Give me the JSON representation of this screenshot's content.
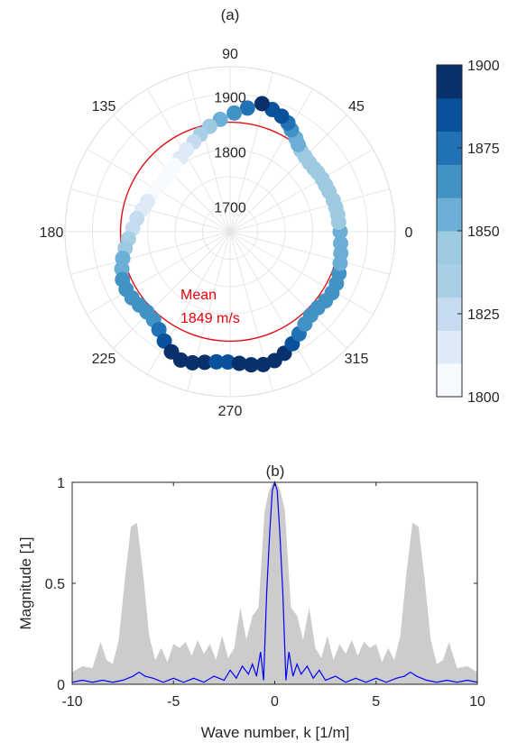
{
  "chart_data": [
    {
      "type": "scatter",
      "subtype": "polar",
      "title": "(a)",
      "theta_ticks": [
        "0",
        "45",
        "90",
        "135",
        "180",
        "225",
        "270",
        "315"
      ],
      "r_ticks": [
        "1700",
        "1800",
        "1900"
      ],
      "rlim": [
        1650,
        1950
      ],
      "annotation": {
        "line1": "Mean",
        "line2": "1849 m/s",
        "value": 1849,
        "color": "#e8000b"
      },
      "colorbar": {
        "ticks": [
          "1800",
          "1825",
          "1850",
          "1875",
          "1900"
        ],
        "range": [
          1800,
          1900
        ],
        "levels": 10
      },
      "points": [
        {
          "theta": 0,
          "r": 1850
        },
        {
          "theta": 5,
          "r": 1848
        },
        {
          "theta": 9,
          "r": 1848
        },
        {
          "theta": 13,
          "r": 1847
        },
        {
          "theta": 17,
          "r": 1846
        },
        {
          "theta": 22,
          "r": 1844
        },
        {
          "theta": 26,
          "r": 1843
        },
        {
          "theta": 30,
          "r": 1843
        },
        {
          "theta": 34,
          "r": 1842
        },
        {
          "theta": 37,
          "r": 1841
        },
        {
          "theta": 41,
          "r": 1841
        },
        {
          "theta": 45,
          "r": 1843
        },
        {
          "theta": 49,
          "r": 1846
        },
        {
          "theta": 52,
          "r": 1851
        },
        {
          "theta": 55,
          "r": 1858
        },
        {
          "theta": 59,
          "r": 1866
        },
        {
          "theta": 62,
          "r": 1874
        },
        {
          "theta": 66,
          "r": 1880
        },
        {
          "theta": 71,
          "r": 1885
        },
        {
          "theta": 76,
          "r": 1890
        },
        {
          "theta": 82,
          "r": 1877
        },
        {
          "theta": 88,
          "r": 1866
        },
        {
          "theta": 95,
          "r": 1855
        },
        {
          "theta": 101,
          "r": 1845
        },
        {
          "theta": 107,
          "r": 1835
        },
        {
          "theta": 112,
          "r": 1826
        },
        {
          "theta": 118,
          "r": 1819
        },
        {
          "theta": 124,
          "r": 1812
        },
        {
          "theta": 130,
          "r": 1807
        },
        {
          "theta": 136,
          "r": 1804
        },
        {
          "theta": 142,
          "r": 1802
        },
        {
          "theta": 148,
          "r": 1803
        },
        {
          "theta": 154,
          "r": 1806
        },
        {
          "theta": 160,
          "r": 1810
        },
        {
          "theta": 166,
          "r": 1815
        },
        {
          "theta": 172,
          "r": 1821
        },
        {
          "theta": 178,
          "r": 1827
        },
        {
          "theta": 184,
          "r": 1835
        },
        {
          "theta": 189,
          "r": 1843
        },
        {
          "theta": 194,
          "r": 1851
        },
        {
          "theta": 199,
          "r": 1858
        },
        {
          "theta": 204,
          "r": 1864
        },
        {
          "theta": 209,
          "r": 1866
        },
        {
          "theta": 214,
          "r": 1865
        },
        {
          "theta": 219,
          "r": 1862
        },
        {
          "theta": 224,
          "r": 1860
        },
        {
          "theta": 229,
          "r": 1862
        },
        {
          "theta": 234,
          "r": 1870
        },
        {
          "theta": 239,
          "r": 1882
        },
        {
          "theta": 244,
          "r": 1893
        },
        {
          "theta": 249,
          "r": 1900
        },
        {
          "theta": 254,
          "r": 1898
        },
        {
          "theta": 259,
          "r": 1892
        },
        {
          "theta": 264,
          "r": 1888
        },
        {
          "theta": 269,
          "r": 1887
        },
        {
          "theta": 274,
          "r": 1890
        },
        {
          "theta": 279,
          "r": 1895
        },
        {
          "theta": 284,
          "r": 1899
        },
        {
          "theta": 289,
          "r": 1898
        },
        {
          "theta": 294,
          "r": 1892
        },
        {
          "theta": 299,
          "r": 1883
        },
        {
          "theta": 304,
          "r": 1874
        },
        {
          "theta": 309,
          "r": 1866
        },
        {
          "theta": 314,
          "r": 1861
        },
        {
          "theta": 319,
          "r": 1861
        },
        {
          "theta": 324,
          "r": 1864
        },
        {
          "theta": 329,
          "r": 1866
        },
        {
          "theta": 334,
          "r": 1865
        },
        {
          "theta": 339,
          "r": 1862
        },
        {
          "theta": 344,
          "r": 1858
        },
        {
          "theta": 349,
          "r": 1855
        },
        {
          "theta": 354,
          "r": 1852
        }
      ]
    },
    {
      "type": "line",
      "title": "(b)",
      "xlabel": "Wave number, k [1/m]",
      "ylabel": "Magnitude [1]",
      "xlim": [
        -10,
        10
      ],
      "ylim": [
        0,
        1
      ],
      "xticks": [
        "-10",
        "-5",
        "0",
        "5",
        "10"
      ],
      "yticks": [
        "0",
        "0.5",
        "1"
      ],
      "series": [
        {
          "kind": "area",
          "color": "#cccccc",
          "x": [
            -10,
            -9.5,
            -9.0,
            -8.6,
            -8.3,
            -8.0,
            -7.7,
            -7.4,
            -7.1,
            -6.8,
            -6.5,
            -6.2,
            -5.9,
            -5.6,
            -5.3,
            -5.0,
            -4.7,
            -4.4,
            -4.1,
            -3.8,
            -3.5,
            -3.2,
            -2.9,
            -2.6,
            -2.3,
            -2.0,
            -1.7,
            -1.4,
            -1.1,
            -0.8,
            -0.5,
            -0.3,
            -0.15,
            0,
            0.15,
            0.3,
            0.5,
            0.8,
            1.1,
            1.4,
            1.7,
            2.0,
            2.3,
            2.6,
            2.9,
            3.2,
            3.5,
            3.8,
            4.1,
            4.4,
            4.7,
            5.0,
            5.3,
            5.6,
            5.9,
            6.2,
            6.5,
            6.8,
            7.1,
            7.4,
            7.7,
            8.0,
            8.3,
            8.6,
            9.0,
            9.5,
            10
          ],
          "y": [
            0.06,
            0.09,
            0.08,
            0.21,
            0.12,
            0.1,
            0.22,
            0.52,
            0.78,
            0.8,
            0.55,
            0.24,
            0.12,
            0.18,
            0.11,
            0.2,
            0.18,
            0.21,
            0.14,
            0.22,
            0.15,
            0.2,
            0.12,
            0.24,
            0.13,
            0.18,
            0.38,
            0.22,
            0.34,
            0.38,
            0.86,
            0.95,
            0.99,
            1.0,
            0.99,
            0.95,
            0.86,
            0.38,
            0.34,
            0.22,
            0.38,
            0.18,
            0.13,
            0.24,
            0.12,
            0.2,
            0.15,
            0.22,
            0.14,
            0.21,
            0.18,
            0.2,
            0.11,
            0.18,
            0.12,
            0.24,
            0.55,
            0.8,
            0.78,
            0.52,
            0.22,
            0.1,
            0.12,
            0.21,
            0.08,
            0.09,
            0.06
          ]
        },
        {
          "kind": "line",
          "color": "#0000ff",
          "x": [
            -10,
            -9.5,
            -9.0,
            -8.5,
            -8.0,
            -7.5,
            -7.0,
            -6.7,
            -6.4,
            -6.0,
            -5.5,
            -5.0,
            -4.5,
            -4.0,
            -3.5,
            -3.0,
            -2.5,
            -2.2,
            -1.9,
            -1.6,
            -1.3,
            -1.1,
            -0.9,
            -0.7,
            -0.55,
            -0.4,
            -0.25,
            -0.12,
            0,
            0.12,
            0.25,
            0.4,
            0.55,
            0.7,
            0.9,
            1.1,
            1.3,
            1.6,
            1.9,
            2.2,
            2.5,
            3.0,
            3.5,
            4.0,
            4.5,
            5.0,
            5.5,
            6.0,
            6.4,
            6.7,
            7.0,
            7.5,
            8.0,
            8.5,
            9.0,
            9.5,
            10
          ],
          "y": [
            0.01,
            0.02,
            0.01,
            0.02,
            0.01,
            0.02,
            0.04,
            0.06,
            0.04,
            0.03,
            0.01,
            0.03,
            0.01,
            0.03,
            0.01,
            0.04,
            0.02,
            0.07,
            0.03,
            0.09,
            0.05,
            0.1,
            0.04,
            0.16,
            0.02,
            0.45,
            0.75,
            0.96,
            1.0,
            0.96,
            0.75,
            0.45,
            0.02,
            0.16,
            0.04,
            0.1,
            0.05,
            0.09,
            0.03,
            0.07,
            0.02,
            0.04,
            0.01,
            0.03,
            0.01,
            0.03,
            0.01,
            0.03,
            0.04,
            0.06,
            0.04,
            0.02,
            0.01,
            0.02,
            0.01,
            0.02,
            0.01
          ]
        }
      ]
    }
  ]
}
